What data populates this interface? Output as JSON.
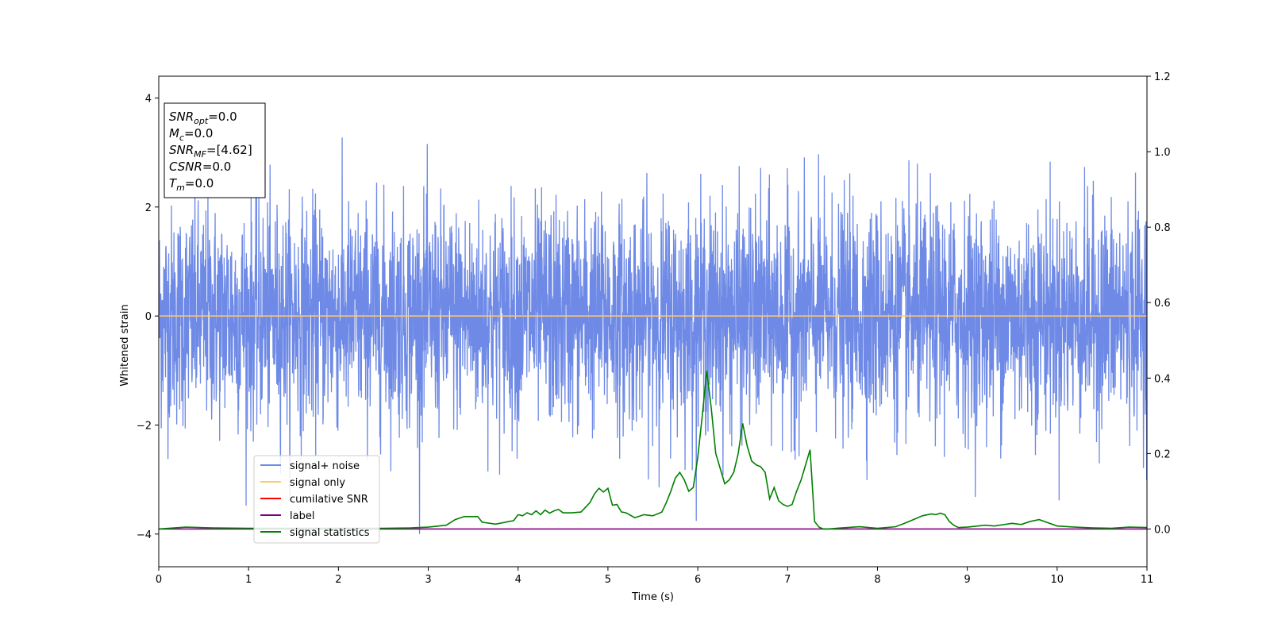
{
  "chart_data": {
    "type": "line",
    "xlabel": "Time (s)",
    "ylabel": "Whitened strain",
    "xlim": [
      0,
      11
    ],
    "ylim_left": [
      -4.6,
      4.4
    ],
    "ylim_right": [
      -0.1,
      1.2
    ],
    "x_ticks": [
      "0",
      "1",
      "2",
      "3",
      "4",
      "5",
      "6",
      "7",
      "8",
      "9",
      "10",
      "11"
    ],
    "y_left_ticks": [
      "4",
      "2",
      "0",
      "−2",
      "−4"
    ],
    "y_left_tick_values": [
      4,
      2,
      0,
      -2,
      -4
    ],
    "y_right_ticks": [
      "1.2",
      "1.0",
      "0.8",
      "0.6",
      "0.4",
      "0.2",
      "0.0"
    ],
    "y_right_tick_values": [
      1.2,
      1.0,
      0.8,
      0.6,
      0.4,
      0.2,
      0.0
    ],
    "legend": {
      "placement": "lower-left",
      "entries": [
        {
          "label": "signal+ noise",
          "color": "#6e8ae6"
        },
        {
          "label": "signal only",
          "color": "#ffc870"
        },
        {
          "label": "cumilative SNR",
          "color": "#ff0000"
        },
        {
          "label": "label",
          "color": "#800080"
        },
        {
          "label": "signal statistics",
          "color": "#008000"
        }
      ]
    },
    "info_box": [
      {
        "main": "SNR",
        "sub": "opt",
        "rest": "=0.0"
      },
      {
        "main": "M",
        "sub": "c",
        "rest": "=0.0"
      },
      {
        "main": "SNR",
        "sub": "MF",
        "rest": "=[4.62]"
      },
      {
        "main": "CSNR",
        "sub": "",
        "rest": "=0.0"
      },
      {
        "main": "T",
        "sub": "m",
        "rest": "=0.0"
      }
    ],
    "series": [
      {
        "name": "signal+ noise",
        "axis": "left",
        "color": "#6e8ae6",
        "description_type": "noise",
        "sample_rate_per_s": 360,
        "amplitude_sigma": 1.0,
        "max_abs": 4.0
      },
      {
        "name": "signal only",
        "axis": "left",
        "color": "#ffc870",
        "x": [
          0,
          11
        ],
        "y": [
          0,
          0
        ]
      },
      {
        "name": "label",
        "axis": "right",
        "color": "#800080",
        "x": [
          0,
          11
        ],
        "y": [
          0,
          0
        ]
      },
      {
        "name": "signal statistics",
        "axis": "right",
        "color": "#008000",
        "x": [
          0,
          0.3,
          0.6,
          1.0,
          1.5,
          2.0,
          2.5,
          2.8,
          3.0,
          3.2,
          3.3,
          3.4,
          3.55,
          3.6,
          3.75,
          3.9,
          3.95,
          4.0,
          4.05,
          4.1,
          4.15,
          4.2,
          4.25,
          4.3,
          4.35,
          4.4,
          4.45,
          4.5,
          4.6,
          4.7,
          4.8,
          4.85,
          4.9,
          4.95,
          5.0,
          5.05,
          5.1,
          5.15,
          5.2,
          5.3,
          5.4,
          5.5,
          5.6,
          5.65,
          5.7,
          5.75,
          5.8,
          5.85,
          5.9,
          5.95,
          6.0,
          6.05,
          6.1,
          6.15,
          6.2,
          6.25,
          6.3,
          6.35,
          6.4,
          6.45,
          6.5,
          6.55,
          6.6,
          6.65,
          6.7,
          6.75,
          6.8,
          6.85,
          6.9,
          6.95,
          7.0,
          7.05,
          7.1,
          7.15,
          7.2,
          7.25,
          7.3,
          7.35,
          7.4,
          7.45,
          7.6,
          7.8,
          7.9,
          8.0,
          8.2,
          8.3,
          8.4,
          8.5,
          8.6,
          8.65,
          8.7,
          8.75,
          8.8,
          8.85,
          8.9,
          9.0,
          9.2,
          9.3,
          9.5,
          9.6,
          9.7,
          9.8,
          10.0,
          10.2,
          10.4,
          10.6,
          10.8,
          11.0
        ],
        "y": [
          0.0,
          0.005,
          0.003,
          0.002,
          0.002,
          0.002,
          0.002,
          0.003,
          0.005,
          0.01,
          0.025,
          0.033,
          0.033,
          0.018,
          0.013,
          0.02,
          0.022,
          0.038,
          0.035,
          0.043,
          0.038,
          0.048,
          0.038,
          0.05,
          0.042,
          0.048,
          0.052,
          0.043,
          0.043,
          0.045,
          0.07,
          0.093,
          0.108,
          0.098,
          0.108,
          0.063,
          0.065,
          0.045,
          0.043,
          0.03,
          0.038,
          0.035,
          0.045,
          0.07,
          0.1,
          0.135,
          0.15,
          0.13,
          0.1,
          0.11,
          0.19,
          0.3,
          0.42,
          0.32,
          0.2,
          0.16,
          0.12,
          0.13,
          0.15,
          0.2,
          0.28,
          0.22,
          0.18,
          0.17,
          0.165,
          0.15,
          0.08,
          0.11,
          0.075,
          0.065,
          0.06,
          0.065,
          0.1,
          0.13,
          0.17,
          0.21,
          0.02,
          0.005,
          0.0,
          0.0,
          0.003,
          0.006,
          0.004,
          0.002,
          0.006,
          0.015,
          0.025,
          0.035,
          0.04,
          0.038,
          0.042,
          0.038,
          0.02,
          0.01,
          0.004,
          0.005,
          0.01,
          0.008,
          0.015,
          0.012,
          0.02,
          0.025,
          0.008,
          0.005,
          0.003,
          0.002,
          0.005,
          0.004
        ]
      }
    ]
  }
}
